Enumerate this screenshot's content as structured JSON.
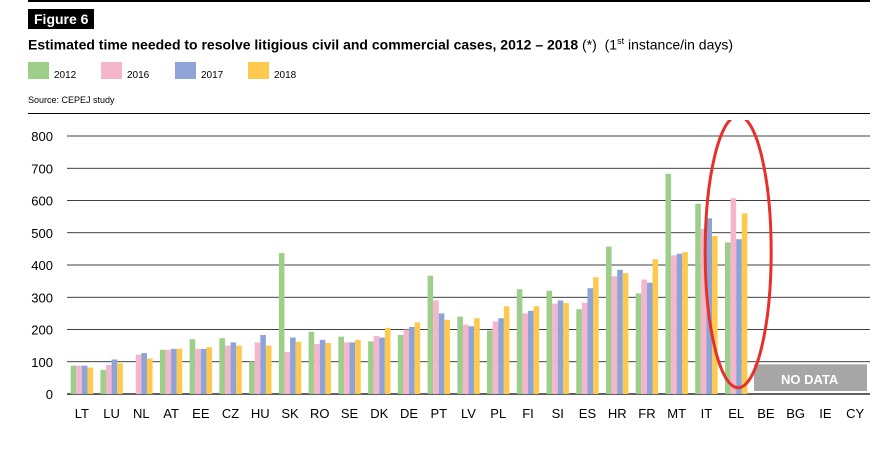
{
  "figure_label": "Figure 6",
  "title_bold": "Estimated time needed to resolve litigious civil and commercial cases, 2012 – 2018",
  "title_note": "(*)",
  "title_unit_open": "(1",
  "title_unit_sup": "st",
  "title_unit_close": " instance/in days)",
  "source": "Source: CEPEJ study",
  "no_data_label": "NO DATA",
  "annotation": "red-ellipse-highlight-EL",
  "chart_data": {
    "type": "bar",
    "title": "Estimated time needed to resolve litigious civil and commercial cases, 2012 – 2018",
    "xlabel": "",
    "ylabel": "days",
    "ylim": [
      0,
      800
    ],
    "yticks": [
      0,
      100,
      200,
      300,
      400,
      500,
      600,
      700,
      800
    ],
    "grid": true,
    "legend_position": "top-left",
    "categories": [
      "LT",
      "LU",
      "NL",
      "AT",
      "EE",
      "CZ",
      "HU",
      "SK",
      "RO",
      "SE",
      "DK",
      "DE",
      "PT",
      "LV",
      "PL",
      "FI",
      "SI",
      "ES",
      "HR",
      "FR",
      "MT",
      "IT",
      "EL",
      "BE",
      "BG",
      "IE",
      "CY"
    ],
    "series": [
      {
        "name": "2012",
        "color": "#9dcf8a",
        "values": [
          88,
          75,
          null,
          137,
          170,
          173,
          100,
          437,
          193,
          178,
          163,
          183,
          367,
          240,
          197,
          325,
          320,
          263,
          457,
          312,
          683,
          590,
          470,
          null,
          null,
          null,
          null
        ]
      },
      {
        "name": "2016",
        "color": "#f5b6cd",
        "values": [
          88,
          90,
          122,
          137,
          140,
          150,
          160,
          130,
          155,
          160,
          180,
          200,
          290,
          215,
          225,
          250,
          280,
          283,
          365,
          355,
          430,
          512,
          607,
          null,
          null,
          null,
          null
        ]
      },
      {
        "name": "2017",
        "color": "#8fa4d6",
        "values": [
          88,
          107,
          127,
          140,
          140,
          160,
          183,
          175,
          168,
          160,
          175,
          208,
          250,
          210,
          235,
          258,
          290,
          328,
          385,
          345,
          435,
          545,
          480,
          null,
          null,
          null,
          null
        ]
      },
      {
        "name": "2018",
        "color": "#fdc94f",
        "values": [
          82,
          95,
          110,
          140,
          145,
          150,
          150,
          162,
          158,
          168,
          205,
          222,
          230,
          235,
          272,
          272,
          282,
          362,
          375,
          418,
          440,
          490,
          560,
          null,
          null,
          null,
          null
        ]
      }
    ]
  }
}
